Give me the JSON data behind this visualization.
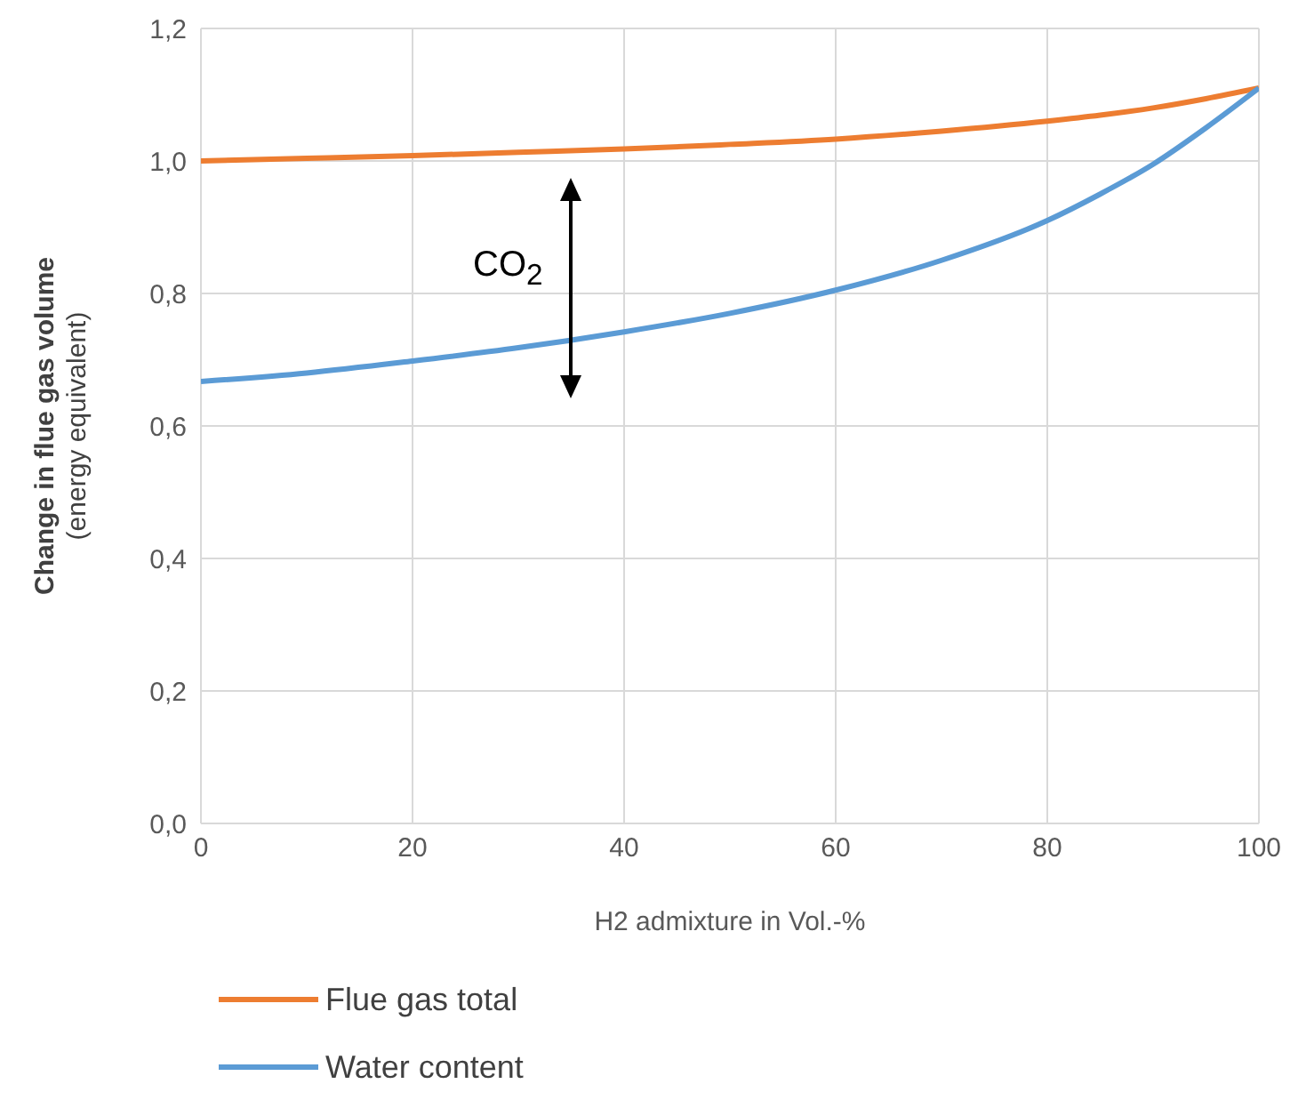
{
  "chart_data": {
    "type": "line",
    "xlabel": "H2 admixture in Vol.-%",
    "ylabel": "Change in flue gas volume\n(energy equivalent)",
    "annotations": [
      "CO$_{2}$"
    ],
    "x": [
      0,
      10,
      20,
      30,
      40,
      50,
      60,
      70,
      80,
      85,
      90,
      95,
      100
    ],
    "series": [
      {
        "name": "Flue gas total",
        "color": "#ed7d31",
        "values": [
          1.0,
          1.004,
          1.008,
          1.013,
          1.018,
          1.025,
          1.033,
          1.045,
          1.06,
          1.069,
          1.08,
          1.094,
          1.11
        ]
      },
      {
        "name": "Water content",
        "color": "#5b9bd5",
        "values": [
          0.667,
          0.68,
          0.698,
          0.718,
          0.742,
          0.77,
          0.805,
          0.85,
          0.91,
          0.95,
          0.995,
          1.05,
          1.11
        ]
      }
    ],
    "xlim": [
      0,
      100
    ],
    "xticks": [
      0,
      20,
      40,
      60,
      80,
      100
    ],
    "ylim": [
      0,
      1.2
    ],
    "yticks": [
      {
        "value": 0,
        "label": "0,0"
      },
      {
        "value": 0.2,
        "label": "0,2"
      },
      {
        "value": 0.4,
        "label": "0,4"
      },
      {
        "value": 0.6,
        "label": "0,6"
      },
      {
        "value": 0.8,
        "label": "0,8"
      },
      {
        "value": 1.0,
        "label": "1,0"
      },
      {
        "value": 1.2,
        "label": "1,2"
      }
    ],
    "grid": true,
    "legend": "bottom",
    "marker": "none",
    "line_style": "solid"
  }
}
